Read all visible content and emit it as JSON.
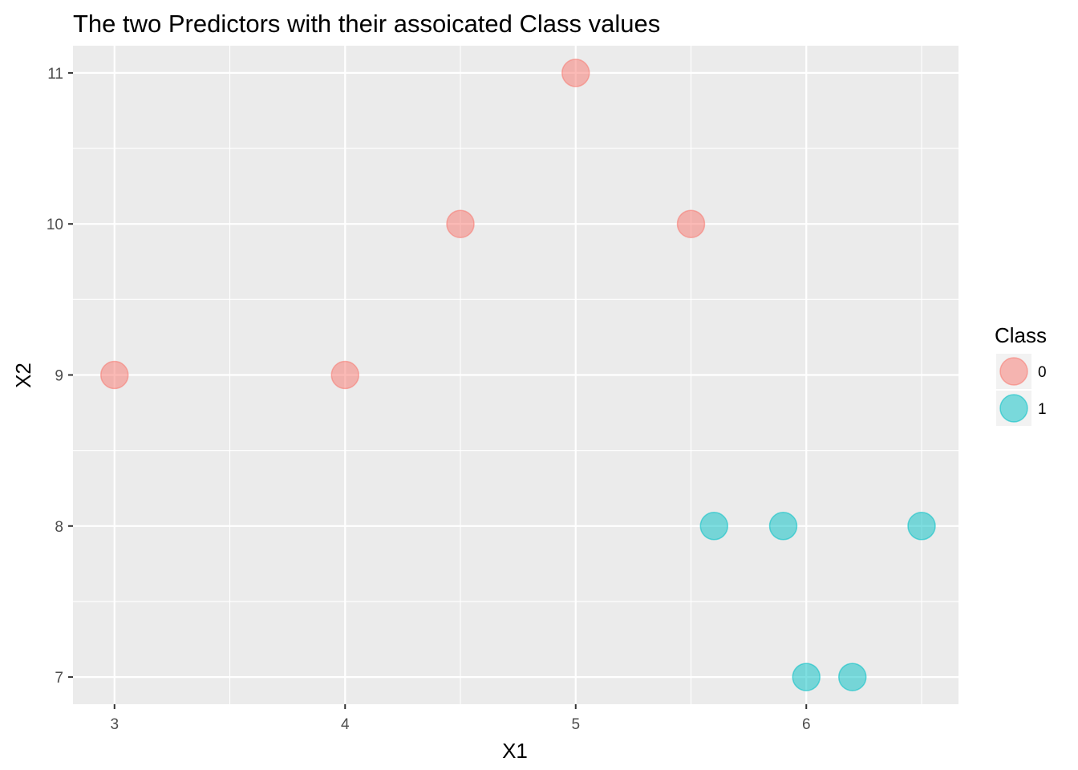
{
  "chart_data": {
    "type": "scatter",
    "title": "The two Predictors with their assoicated Class values",
    "xlabel": "X1",
    "ylabel": "X2",
    "xlim": [
      2.82,
      6.66
    ],
    "ylim": [
      6.82,
      11.18
    ],
    "x_ticks": [
      3,
      4,
      5,
      6
    ],
    "y_ticks": [
      7,
      8,
      9,
      10,
      11
    ],
    "x_minor": [
      3.5,
      4.5,
      5.5,
      6.5
    ],
    "y_minor": [
      7.5,
      8.5,
      9.5,
      10.5
    ],
    "grid": true,
    "panel_background": "#ebebeb",
    "legend_position": "right",
    "legend_title": "Class",
    "series": [
      {
        "name": "0",
        "color": "#f8766d",
        "points": [
          {
            "x": 3.0,
            "y": 9
          },
          {
            "x": 4.0,
            "y": 9
          },
          {
            "x": 4.5,
            "y": 10
          },
          {
            "x": 5.0,
            "y": 11
          },
          {
            "x": 5.5,
            "y": 10
          }
        ]
      },
      {
        "name": "1",
        "color": "#00bfc4",
        "points": [
          {
            "x": 5.6,
            "y": 8
          },
          {
            "x": 5.9,
            "y": 8
          },
          {
            "x": 6.5,
            "y": 8
          },
          {
            "x": 6.0,
            "y": 7
          },
          {
            "x": 6.2,
            "y": 7
          }
        ]
      }
    ]
  }
}
